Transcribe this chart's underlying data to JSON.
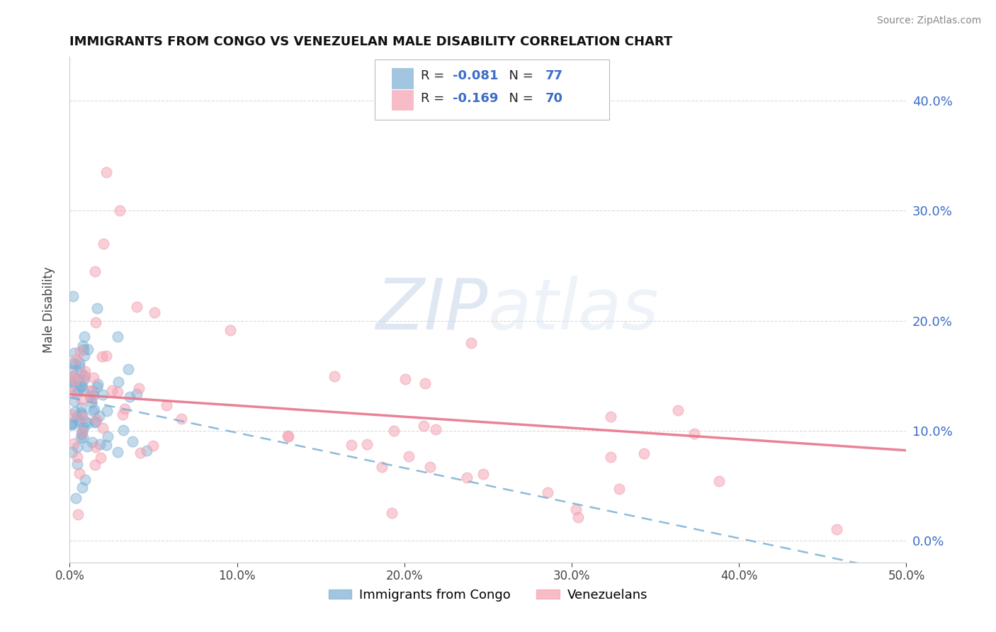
{
  "title": "IMMIGRANTS FROM CONGO VS VENEZUELAN MALE DISABILITY CORRELATION CHART",
  "source": "Source: ZipAtlas.com",
  "ylabel": "Male Disability",
  "legend_label1": "Immigrants from Congo",
  "legend_label2": "Venezuelans",
  "R1": -0.081,
  "N1": 77,
  "R2": -0.169,
  "N2": 70,
  "color1": "#7BAFD4",
  "color2": "#F4A0B0",
  "color_blue_text": "#3B6CC9",
  "background_color": "#FFFFFF",
  "grid_color": "#CCCCCC",
  "xlim": [
    0.0,
    0.5
  ],
  "ylim": [
    -0.02,
    0.44
  ],
  "x_ticks": [
    0.0,
    0.1,
    0.2,
    0.3,
    0.4,
    0.5
  ],
  "y_ticks": [
    0.0,
    0.1,
    0.2,
    0.3,
    0.4
  ],
  "watermark": "ZIPatlas",
  "watermark_zip": "ZIP",
  "watermark_atlas": "atlas"
}
